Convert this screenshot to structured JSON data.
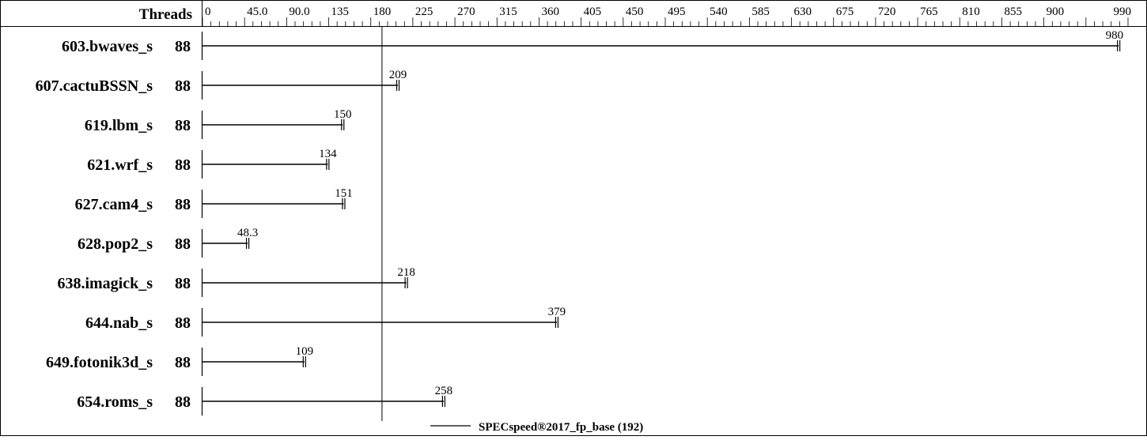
{
  "chart_data": {
    "type": "bar",
    "header_label": "Threads",
    "xlim": [
      0,
      990
    ],
    "tick_labels": [
      "0",
      "45.0",
      "90.0",
      "135",
      "180",
      "225",
      "270",
      "315",
      "360",
      "405",
      "450",
      "495",
      "540",
      "585",
      "630",
      "675",
      "720",
      "765",
      "810",
      "855",
      "900",
      "990"
    ],
    "tick_values": [
      0,
      45,
      90,
      135,
      180,
      225,
      270,
      315,
      360,
      405,
      450,
      495,
      540,
      585,
      630,
      675,
      720,
      765,
      810,
      855,
      900,
      990
    ],
    "benchmarks": [
      {
        "name": "603.bwaves_s",
        "threads": "88",
        "value": 980,
        "label": "980"
      },
      {
        "name": "607.cactuBSSN_s",
        "threads": "88",
        "value": 209,
        "label": "209"
      },
      {
        "name": "619.lbm_s",
        "threads": "88",
        "value": 150,
        "label": "150"
      },
      {
        "name": "621.wrf_s",
        "threads": "88",
        "value": 134,
        "label": "134"
      },
      {
        "name": "627.cam4_s",
        "threads": "88",
        "value": 151,
        "label": "151"
      },
      {
        "name": "628.pop2_s",
        "threads": "88",
        "value": 48.3,
        "label": "48.3"
      },
      {
        "name": "638.imagick_s",
        "threads": "88",
        "value": 218,
        "label": "218"
      },
      {
        "name": "644.nab_s",
        "threads": "88",
        "value": 379,
        "label": "379"
      },
      {
        "name": "649.fotonik3d_s",
        "threads": "88",
        "value": 109,
        "label": "109"
      },
      {
        "name": "654.roms_s",
        "threads": "88",
        "value": 258,
        "label": "258"
      }
    ],
    "reference": {
      "value": 192,
      "label": "SPECspeed®2017_fp_base (192)"
    }
  }
}
